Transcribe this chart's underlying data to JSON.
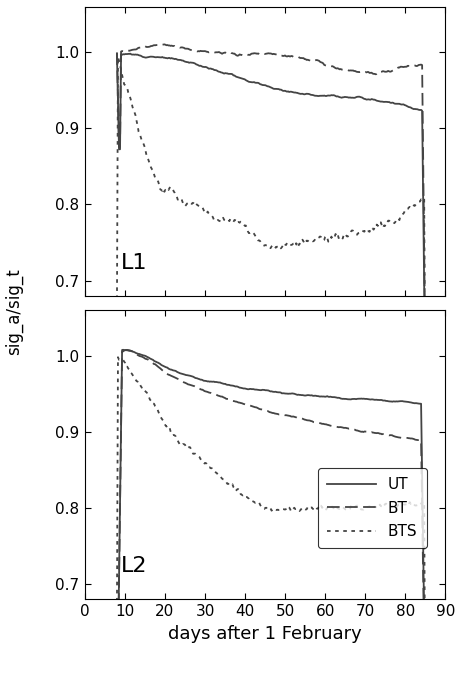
{
  "xlabel": "days after 1 February",
  "ylabel": "sig_a/sig_t",
  "xlim": [
    0,
    90
  ],
  "ylim": [
    0.68,
    1.06
  ],
  "xticks": [
    0,
    10,
    20,
    30,
    40,
    50,
    60,
    70,
    80,
    90
  ],
  "yticks": [
    0.7,
    0.8,
    0.9,
    1.0
  ],
  "label_L1": "L1",
  "label_L2": "L2",
  "legend_UT": "UT",
  "legend_BT": "BT",
  "legend_BTS": "BTS",
  "line_color": "#444444",
  "background": "#ffffff",
  "figsize": [
    4.59,
    6.77
  ],
  "dpi": 100
}
